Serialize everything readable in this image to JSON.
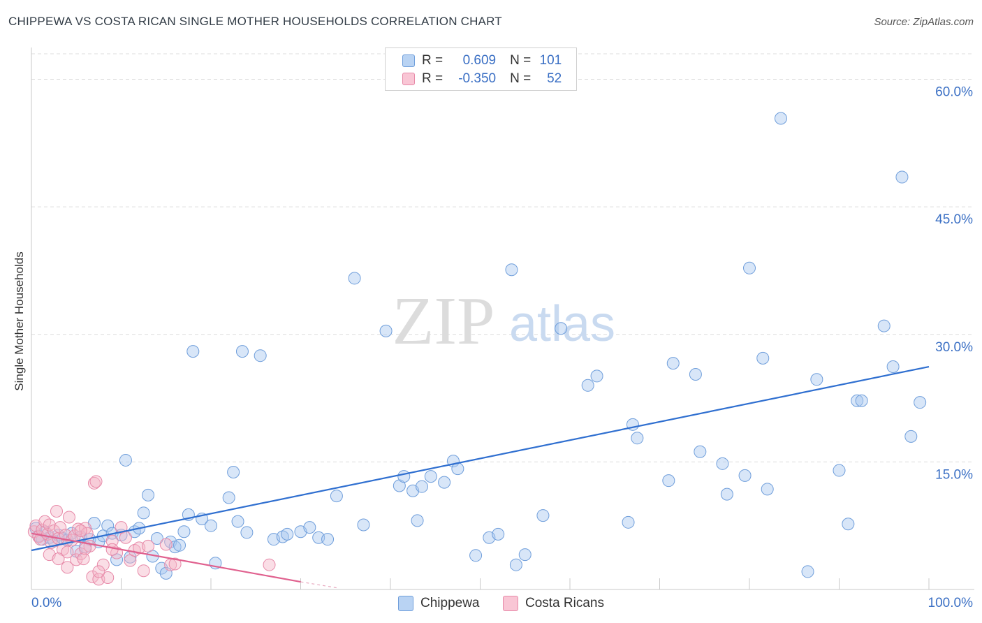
{
  "header": {
    "title": "CHIPPEWA VS COSTA RICAN SINGLE MOTHER HOUSEHOLDS CORRELATION CHART",
    "source": "Source: ZipAtlas.com"
  },
  "watermark": {
    "zip": "ZIP",
    "atlas": "atlas"
  },
  "legend": {
    "r_label": "R =",
    "n_label": "N =",
    "series": [
      {
        "name": "Chippewa",
        "r": "0.609",
        "n": "101",
        "fill": "#a9c8f0",
        "stroke": "#6f9edb"
      },
      {
        "name": "Costa Ricans",
        "r": "-0.350",
        "n": "52",
        "fill": "#f5b6c8",
        "stroke": "#e789a8"
      }
    ]
  },
  "colors": {
    "blue_line": "#2f6fd0",
    "pink_line": "#e0608e",
    "axis_text": "#3a6fc4",
    "grid": "#dcdcdc"
  },
  "chart_data": {
    "type": "scatter",
    "title": "CHIPPEWA VS COSTA RICAN SINGLE MOTHER HOUSEHOLDS CORRELATION CHART",
    "xlabel": "",
    "ylabel": "Single Mother Households",
    "xlim": [
      0,
      100
    ],
    "ylim": [
      0,
      63
    ],
    "x_tick_labels": [
      "0.0%",
      "100.0%"
    ],
    "y_ticks": [
      15,
      30,
      45,
      60
    ],
    "y_tick_labels": [
      "15.0%",
      "30.0%",
      "45.0%",
      "60.0%"
    ],
    "series": [
      {
        "name": "Chippewa",
        "r": 0.609,
        "n": 101,
        "trend": {
          "x": [
            0,
            100
          ],
          "y": [
            4.6,
            26.2
          ]
        },
        "points": [
          [
            0.5,
            7.2
          ],
          [
            0.8,
            6.3
          ],
          [
            1.2,
            5.9
          ],
          [
            1.5,
            6.8
          ],
          [
            2.0,
            6.1
          ],
          [
            2.5,
            5.7
          ],
          [
            3.0,
            6.4
          ],
          [
            3.5,
            6.0
          ],
          [
            4.0,
            5.8
          ],
          [
            4.5,
            6.6
          ],
          [
            5.0,
            4.5
          ],
          [
            5.5,
            6.2
          ],
          [
            6.0,
            5.0
          ],
          [
            6.5,
            5.9
          ],
          [
            7.0,
            7.8
          ],
          [
            7.5,
            5.6
          ],
          [
            8.0,
            6.3
          ],
          [
            8.5,
            7.5
          ],
          [
            9.0,
            6.6
          ],
          [
            9.5,
            3.5
          ],
          [
            10.0,
            6.4
          ],
          [
            10.5,
            15.2
          ],
          [
            11.0,
            3.8
          ],
          [
            11.5,
            6.8
          ],
          [
            12.0,
            7.2
          ],
          [
            12.5,
            9.0
          ],
          [
            13.0,
            11.1
          ],
          [
            13.5,
            3.9
          ],
          [
            14.0,
            6.0
          ],
          [
            14.5,
            2.5
          ],
          [
            15.0,
            1.9
          ],
          [
            15.5,
            5.6
          ],
          [
            16.0,
            5.0
          ],
          [
            16.5,
            5.2
          ],
          [
            17.0,
            6.8
          ],
          [
            17.5,
            8.8
          ],
          [
            18.0,
            28.0
          ],
          [
            19.0,
            8.3
          ],
          [
            20.0,
            7.5
          ],
          [
            20.5,
            3.1
          ],
          [
            22.0,
            10.8
          ],
          [
            22.5,
            13.8
          ],
          [
            23.0,
            8.0
          ],
          [
            23.5,
            28.0
          ],
          [
            24.0,
            6.7
          ],
          [
            25.5,
            27.5
          ],
          [
            27.0,
            5.9
          ],
          [
            28.0,
            6.2
          ],
          [
            28.5,
            6.5
          ],
          [
            30.0,
            6.8
          ],
          [
            31.0,
            7.3
          ],
          [
            32.0,
            6.1
          ],
          [
            33.0,
            5.9
          ],
          [
            34.0,
            11.0
          ],
          [
            36.0,
            36.6
          ],
          [
            37.0,
            7.6
          ],
          [
            39.5,
            30.4
          ],
          [
            41.0,
            12.2
          ],
          [
            41.5,
            13.3
          ],
          [
            42.5,
            11.6
          ],
          [
            43.0,
            8.1
          ],
          [
            43.5,
            12.1
          ],
          [
            44.5,
            13.3
          ],
          [
            46.0,
            12.6
          ],
          [
            47.0,
            15.1
          ],
          [
            47.5,
            14.2
          ],
          [
            49.5,
            4.0
          ],
          [
            51.0,
            6.1
          ],
          [
            52.0,
            6.5
          ],
          [
            53.5,
            37.6
          ],
          [
            54.0,
            2.9
          ],
          [
            55.0,
            4.1
          ],
          [
            57.0,
            8.7
          ],
          [
            59.0,
            30.7
          ],
          [
            62.0,
            24.0
          ],
          [
            63.0,
            25.1
          ],
          [
            66.5,
            7.9
          ],
          [
            67.0,
            19.4
          ],
          [
            67.5,
            17.8
          ],
          [
            71.0,
            12.8
          ],
          [
            71.5,
            26.6
          ],
          [
            74.0,
            25.3
          ],
          [
            74.5,
            16.2
          ],
          [
            77.0,
            14.8
          ],
          [
            77.5,
            11.2
          ],
          [
            79.5,
            13.4
          ],
          [
            80.0,
            37.8
          ],
          [
            81.5,
            27.2
          ],
          [
            82.0,
            11.8
          ],
          [
            83.5,
            55.4
          ],
          [
            86.5,
            2.1
          ],
          [
            87.5,
            24.7
          ],
          [
            90.0,
            14.0
          ],
          [
            91.0,
            7.7
          ],
          [
            92.0,
            22.2
          ],
          [
            92.5,
            22.2
          ],
          [
            95.0,
            31.0
          ],
          [
            96.0,
            26.2
          ],
          [
            97.0,
            48.5
          ],
          [
            98.0,
            18.0
          ],
          [
            99.0,
            22.0
          ]
        ]
      },
      {
        "name": "Costa Ricans",
        "r": -0.35,
        "n": 52,
        "trend": {
          "x": [
            0,
            30
          ],
          "y": [
            6.6,
            0.9
          ]
        },
        "trend_extension": {
          "x": [
            30,
            34
          ],
          "y": [
            0.9,
            0.2
          ]
        },
        "points": [
          [
            0.3,
            6.8
          ],
          [
            0.5,
            7.5
          ],
          [
            0.8,
            6.2
          ],
          [
            1.0,
            5.9
          ],
          [
            1.2,
            7.0
          ],
          [
            1.5,
            8.0
          ],
          [
            1.8,
            6.5
          ],
          [
            2.0,
            7.6
          ],
          [
            2.2,
            5.5
          ],
          [
            2.5,
            6.9
          ],
          [
            2.8,
            9.2
          ],
          [
            3.0,
            6.0
          ],
          [
            3.2,
            7.3
          ],
          [
            3.5,
            4.7
          ],
          [
            3.8,
            6.4
          ],
          [
            4.0,
            2.6
          ],
          [
            4.2,
            8.5
          ],
          [
            4.5,
            5.8
          ],
          [
            4.8,
            6.3
          ],
          [
            5.0,
            3.5
          ],
          [
            5.2,
            7.1
          ],
          [
            5.5,
            4.2
          ],
          [
            5.8,
            3.6
          ],
          [
            6.0,
            7.2
          ],
          [
            6.2,
            6.6
          ],
          [
            6.5,
            5.1
          ],
          [
            6.8,
            1.5
          ],
          [
            7.0,
            12.5
          ],
          [
            7.2,
            12.7
          ],
          [
            7.5,
            1.2
          ],
          [
            8.0,
            2.9
          ],
          [
            8.5,
            1.4
          ],
          [
            9.0,
            5.7
          ],
          [
            9.5,
            4.3
          ],
          [
            10.0,
            7.3
          ],
          [
            10.5,
            6.1
          ],
          [
            11.0,
            3.4
          ],
          [
            11.5,
            4.6
          ],
          [
            12.0,
            4.9
          ],
          [
            12.5,
            2.2
          ],
          [
            13.0,
            5.1
          ],
          [
            2.0,
            4.1
          ],
          [
            3.0,
            3.6
          ],
          [
            4.0,
            4.4
          ],
          [
            5.5,
            6.9
          ],
          [
            6.0,
            4.8
          ],
          [
            7.5,
            2.1
          ],
          [
            9.0,
            4.7
          ],
          [
            15.0,
            5.3
          ],
          [
            15.5,
            2.9
          ],
          [
            16.0,
            3.0
          ],
          [
            26.5,
            2.9
          ]
        ]
      }
    ]
  },
  "bottom_legend": [
    "Chippewa",
    "Costa Ricans"
  ]
}
